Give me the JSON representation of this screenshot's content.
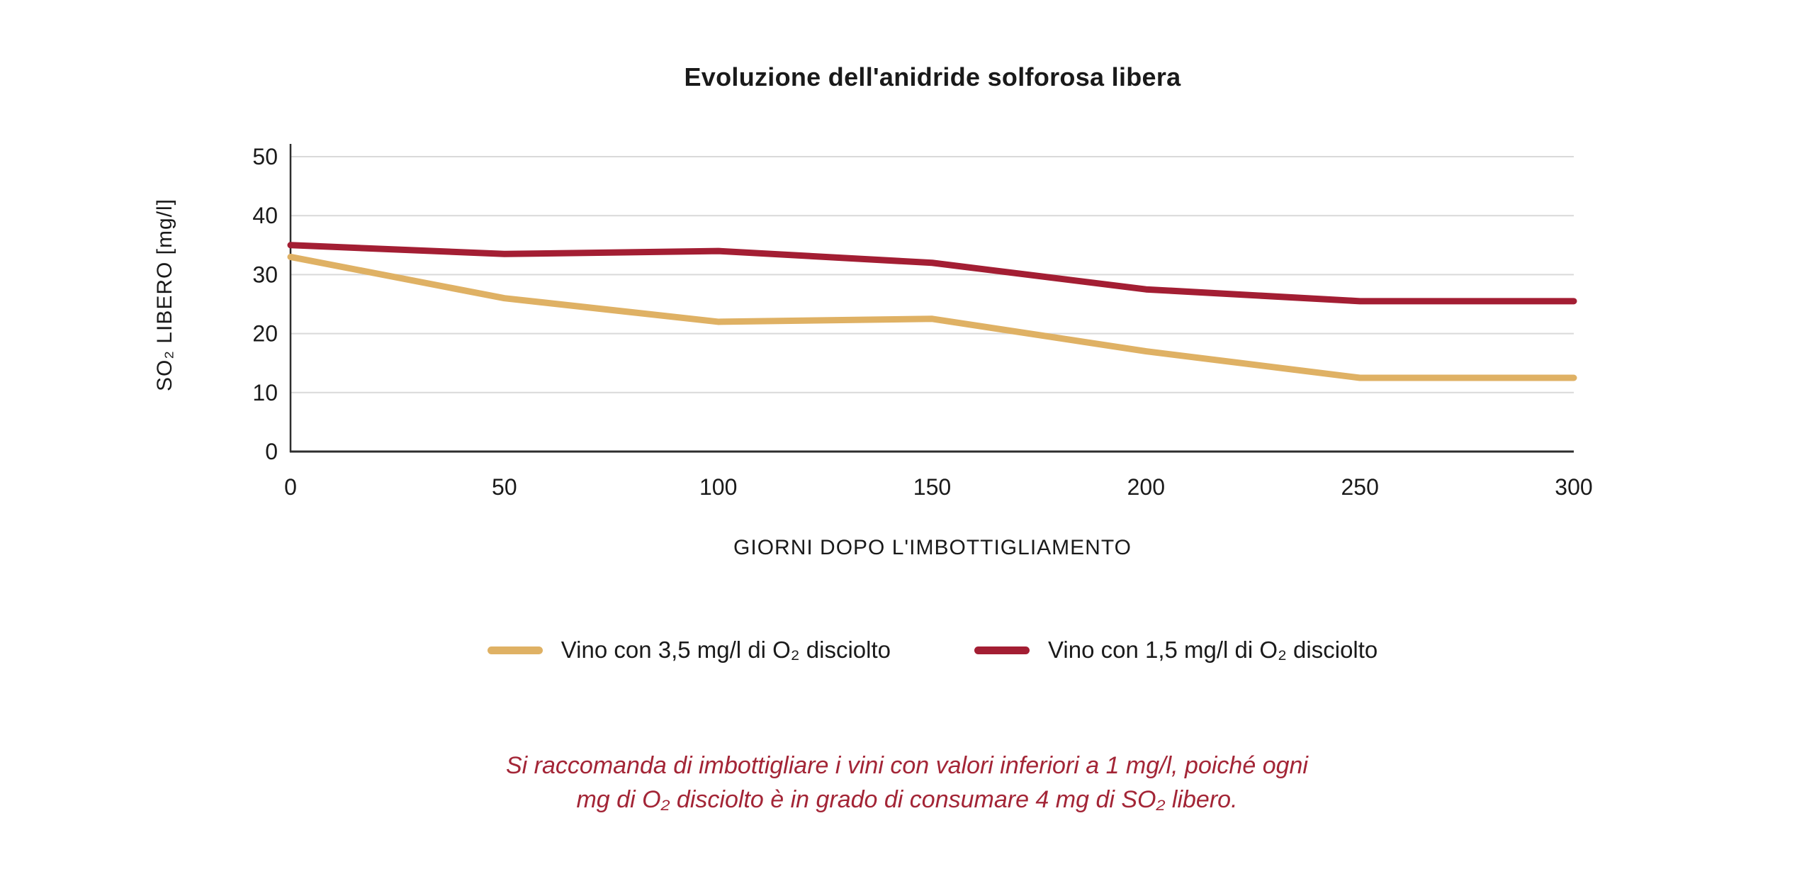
{
  "title": "Evoluzione dell'anidride solforosa libera",
  "chart_data": {
    "type": "line",
    "title": "Evoluzione dell'anidride solforosa libera",
    "xlabel": "GIORNI DOPO L'IMBOTTIGLIAMENTO",
    "ylabel": "SO₂ LIBERO [mg/l]",
    "x": [
      0,
      50,
      100,
      150,
      200,
      250,
      300
    ],
    "x_ticks": [
      "0",
      "50",
      "100",
      "150",
      "200",
      "250",
      "300"
    ],
    "y_ticks": [
      "0",
      "10",
      "20",
      "30",
      "40",
      "50"
    ],
    "xlim": [
      0,
      300
    ],
    "ylim": [
      0,
      50
    ],
    "grid": "horizontal",
    "legend_position": "bottom",
    "series": [
      {
        "name": "Vino con 3,5 mg/l di O₂ disciolto",
        "color": "#dfb164",
        "values": [
          33,
          26,
          22,
          22.5,
          17,
          12.5,
          12.5
        ]
      },
      {
        "name": "Vino con 1,5 mg/l di O₂ disciolto",
        "color": "#a31e33",
        "values": [
          35,
          33.5,
          34,
          32,
          27.5,
          25.5,
          25.5
        ]
      }
    ]
  },
  "footnote": {
    "line1": "Si raccomanda di imbottigliare i vini con valori inferiori a 1 mg/l, poiché ogni",
    "line2": "mg di O₂ disciolto è in grado di consumare 4 mg di SO₂ libero.",
    "color": "#a32536"
  },
  "colors": {
    "background": "#ffffff",
    "text": "#1a1a1a",
    "gridline": "#d9d9d9",
    "axis_line": "#2e2e2e",
    "series_yellow": "#dfb164",
    "series_red": "#a31e33",
    "footnote_red": "#a32536"
  }
}
